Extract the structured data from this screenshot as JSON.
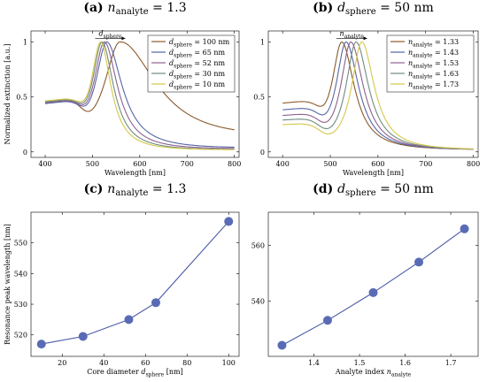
{
  "colors": {
    "d100": "#8b5a2b",
    "d65": "#5567a6",
    "d52": "#8e5f8e",
    "d30": "#6f8c80",
    "d10": "#d4c84a",
    "line_c": "#4b5aa5",
    "marker": "#5a6bb5"
  },
  "chart_data": [
    {
      "id": "a",
      "type": "line",
      "title_label": "(a)",
      "title_var": "n",
      "title_sub": "analyte",
      "title_rest": " = 1.3",
      "xlabel": "Wavelength [nm]",
      "ylabel": "Normalized extinction [a.u.]",
      "xlim": [
        370,
        810
      ],
      "ylim": [
        -0.05,
        1.1
      ],
      "xticks": [
        400,
        500,
        600,
        700,
        800
      ],
      "yticks": [
        0,
        0.5,
        1
      ],
      "ytick_labels": [
        "0",
        "0.5",
        "1"
      ],
      "annotation_var": "d",
      "annotation_sub": "sphere",
      "legend_position": "top-right",
      "series": [
        {
          "legend_var": "d",
          "legend_sub": "sphere",
          "legend_rest": " = 100 nm",
          "color_key": "d100",
          "peak": 558,
          "wl": 42,
          "wr": 95,
          "base": 0.42,
          "tail": 0.07
        },
        {
          "legend_var": "d",
          "legend_sub": "sphere",
          "legend_rest": " = 65 nm",
          "color_key": "d65",
          "peak": 530,
          "wl": 30,
          "wr": 40,
          "base": 0.41,
          "tail": 0.02
        },
        {
          "legend_var": "d",
          "legend_sub": "sphere",
          "legend_rest": " = 52 nm",
          "color_key": "d52",
          "peak": 525,
          "wl": 28,
          "wr": 34,
          "base": 0.42,
          "tail": 0.015
        },
        {
          "legend_var": "d",
          "legend_sub": "sphere",
          "legend_rest": " = 30 nm",
          "color_key": "d30",
          "peak": 520,
          "wl": 26,
          "wr": 30,
          "base": 0.43,
          "tail": 0.01
        },
        {
          "legend_var": "d",
          "legend_sub": "sphere",
          "legend_rest": " = 10 nm",
          "color_key": "d10",
          "peak": 517,
          "wl": 25,
          "wr": 27,
          "base": 0.44,
          "tail": 0.01
        }
      ]
    },
    {
      "id": "b",
      "type": "line",
      "title_label": "(b)",
      "title_var": "d",
      "title_sub": "sphere",
      "title_rest": " = 50 nm",
      "xlabel": "Wavelength [nm]",
      "ylabel": "",
      "xlim": [
        370,
        810
      ],
      "ylim": [
        -0.05,
        1.1
      ],
      "xticks": [
        400,
        500,
        600,
        700,
        800
      ],
      "yticks": [
        0,
        0.5,
        1
      ],
      "ytick_labels": [
        "0",
        "0.5",
        "1"
      ],
      "annotation_var": "n",
      "annotation_sub": "analyte",
      "legend_position": "top-right",
      "series": [
        {
          "legend_var": "n",
          "legend_sub": "analyte",
          "legend_rest": " = 1.33",
          "color_key": "d100",
          "peak": 524,
          "wl": 26,
          "wr": 32,
          "base": 0.42,
          "tail": 0.01
        },
        {
          "legend_var": "n",
          "legend_sub": "analyte",
          "legend_rest": " = 1.43",
          "color_key": "d65",
          "peak": 533,
          "wl": 26,
          "wr": 32,
          "base": 0.36,
          "tail": 0.01
        },
        {
          "legend_var": "n",
          "legend_sub": "analyte",
          "legend_rest": " = 1.53",
          "color_key": "d52",
          "peak": 543,
          "wl": 26,
          "wr": 32,
          "base": 0.31,
          "tail": 0.01
        },
        {
          "legend_var": "n",
          "legend_sub": "analyte",
          "legend_rest": " = 1.63",
          "color_key": "d30",
          "peak": 554,
          "wl": 26,
          "wr": 32,
          "base": 0.27,
          "tail": 0.01
        },
        {
          "legend_var": "n",
          "legend_sub": "analyte",
          "legend_rest": " = 1.73",
          "color_key": "d10",
          "peak": 566,
          "wl": 26,
          "wr": 32,
          "base": 0.23,
          "tail": 0.01
        }
      ]
    },
    {
      "id": "c",
      "type": "line",
      "title_label": "(c)",
      "title_var": "n",
      "title_sub": "analyte",
      "title_rest": " = 1.3",
      "xlabel_text": "Core diameter ",
      "xlabel_var": "d",
      "xlabel_sub": "sphere",
      "xlabel_rest": " [nm]",
      "ylabel": "Resonance peak wavelength [nm]",
      "xlim": [
        5,
        105
      ],
      "ylim": [
        513,
        560
      ],
      "xticks": [
        20,
        40,
        60,
        80,
        100
      ],
      "yticks": [
        520,
        530,
        540,
        550
      ],
      "x": [
        10,
        30,
        52,
        65,
        100
      ],
      "y": [
        517,
        519.5,
        525,
        530.5,
        557
      ],
      "color_key": "line_c"
    },
    {
      "id": "d",
      "type": "line",
      "title_label": "(d)",
      "title_var": "d",
      "title_sub": "sphere",
      "title_rest": " = 50 nm",
      "xlabel_text": "Analyte index ",
      "xlabel_var": "n",
      "xlabel_sub": "analyte",
      "xlabel_rest": "",
      "ylabel": "",
      "xlim": [
        1.3,
        1.76
      ],
      "ylim": [
        520,
        572
      ],
      "xticks": [
        1.4,
        1.5,
        1.6,
        1.7
      ],
      "yticks": [
        540,
        560
      ],
      "x": [
        1.33,
        1.43,
        1.53,
        1.63,
        1.73
      ],
      "y": [
        524,
        533,
        543,
        554,
        566
      ],
      "color_key": "line_c"
    }
  ]
}
